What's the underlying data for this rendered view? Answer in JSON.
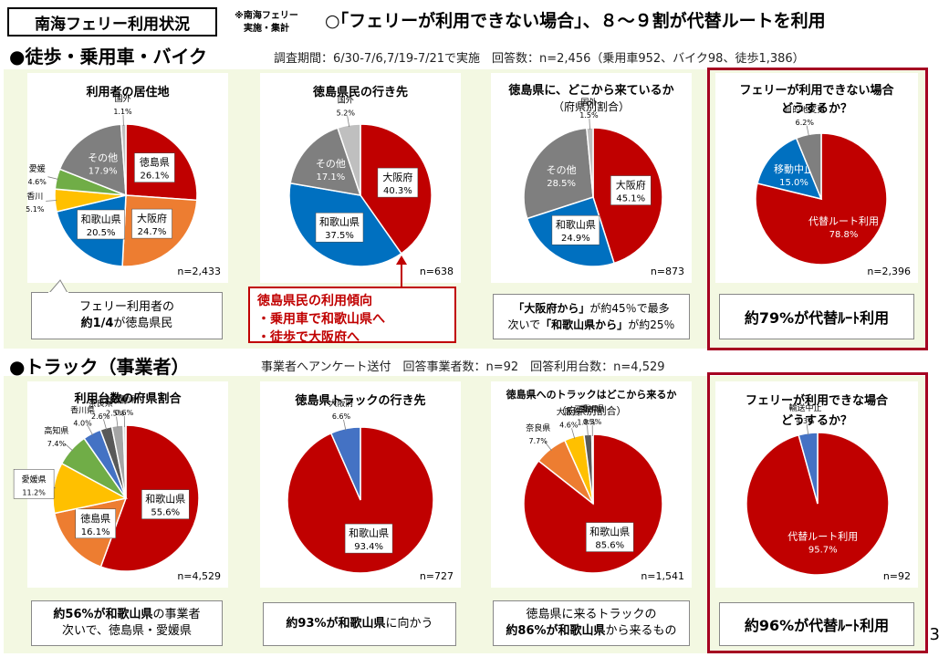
{
  "header": {
    "title": "南海フェリー利用状況",
    "note_line1": "※南海フェリー",
    "note_line2": "実施・集計",
    "headline": "○｢フェリーが利用できない場合｣、８～９割が代替ルートを利用"
  },
  "section1": {
    "title": "●徒歩・乗用車・バイク",
    "info": "調査期間：6/30-7/6,7/19-7/21で実施　回答数：n=2,456（乗用車952、バイク98、徒歩1,386）"
  },
  "section2": {
    "title": "●トラック（事業者）",
    "info": "事業者へアンケート送付　回答事業者数：n=92　回答利用台数：n=4,529"
  },
  "callouts": {
    "c1_line1": "フェリー利用者の",
    "c1_bold": "約1/4",
    "c1_line2": "が徳島県民",
    "c2_line1": "徳島県民の利用傾向",
    "c2_line2": "・乗用車で和歌山県へ",
    "c2_line3": "・徒歩で大阪府へ",
    "c3_bold1": "「大阪府から」",
    "c3_text1": "が約45％で最多",
    "c3_text2": "次いで",
    "c3_bold2": "「和歌山県から」",
    "c3_text3": "が約25％",
    "c4": "約79%が代替ﾙｰﾄ利用",
    "c5_bold": "約56%が和歌山県",
    "c5_text1": "の事業者",
    "c5_text2": "次いで、徳島県・愛媛県",
    "c6_bold": "約93%が和歌山県",
    "c6_text": "に向かう",
    "c7_text1": "徳島県に来るトラックの",
    "c7_bold": "約86%が和歌山県",
    "c7_text2": "から来るもの",
    "c8": "約96%が代替ﾙｰﾄ利用"
  },
  "page_number": "3",
  "chart_data": [
    {
      "type": "pie",
      "title": "利用者の居住地",
      "n": "n=2,433",
      "slices": [
        {
          "label": "徳島県",
          "value": 26.1,
          "pct": "26.1%",
          "color": "#c00000",
          "boxed": true
        },
        {
          "label": "大阪府",
          "value": 24.7,
          "pct": "24.7%",
          "color": "#ed7d31",
          "boxed": true
        },
        {
          "label": "和歌山県",
          "value": 20.5,
          "pct": "20.5%",
          "color": "#0070c0",
          "boxed": true
        },
        {
          "label": "香川",
          "value": 5.1,
          "pct": "5.1%",
          "color": "#ffc000",
          "boxed": false
        },
        {
          "label": "愛媛",
          "value": 4.6,
          "pct": "4.6%",
          "color": "#70ad47",
          "boxed": false
        },
        {
          "label": "その他",
          "value": 17.9,
          "pct": "17.9%",
          "color": "#7f7f7f",
          "boxed": false
        },
        {
          "label": "国外",
          "value": 1.1,
          "pct": "1.1%",
          "color": "#bfbfbf",
          "boxed": false
        }
      ]
    },
    {
      "type": "pie",
      "title": "徳島県民の行き先",
      "n": "n=638",
      "slices": [
        {
          "label": "大阪府",
          "value": 40.3,
          "pct": "40.3%",
          "color": "#c00000",
          "boxed": true
        },
        {
          "label": "和歌山県",
          "value": 37.5,
          "pct": "37.5%",
          "color": "#0070c0",
          "boxed": true
        },
        {
          "label": "その他",
          "value": 17.1,
          "pct": "17.1%",
          "color": "#7f7f7f",
          "boxed": false
        },
        {
          "label": "国外",
          "value": 5.2,
          "pct": "5.2%",
          "color": "#bfbfbf",
          "boxed": false
        }
      ]
    },
    {
      "type": "pie",
      "title": "徳島県に、どこから来ているか",
      "subtitle": "（府県別割合）",
      "n": "n=873",
      "slices": [
        {
          "label": "大阪府",
          "value": 45.1,
          "pct": "45.1%",
          "color": "#c00000",
          "boxed": true
        },
        {
          "label": "和歌山県",
          "value": 24.9,
          "pct": "24.9%",
          "color": "#0070c0",
          "boxed": true
        },
        {
          "label": "その他",
          "value": 28.5,
          "pct": "28.5%",
          "color": "#7f7f7f",
          "boxed": false
        },
        {
          "label": "国外",
          "value": 1.5,
          "pct": "1.5%",
          "color": "#bfbfbf",
          "boxed": false
        }
      ]
    },
    {
      "type": "pie",
      "title": "フェリーが利用できない場合",
      "subtitle": "どうするか？",
      "n": "n=2,396",
      "slices": [
        {
          "label": "代替ルート利用",
          "value": 78.8,
          "pct": "78.8%",
          "color": "#c00000",
          "boxed": false
        },
        {
          "label": "移動中止",
          "value": 15.0,
          "pct": "15.0%",
          "color": "#0070c0",
          "boxed": false
        },
        {
          "label": "目的地変更",
          "value": 6.2,
          "pct": "6.2%",
          "color": "#7f7f7f",
          "boxed": false
        }
      ]
    },
    {
      "type": "pie",
      "title": "利用台数の府県割合",
      "n": "n=4,529",
      "slices": [
        {
          "label": "和歌山県",
          "value": 55.6,
          "pct": "55.6%",
          "color": "#c00000",
          "boxed": true
        },
        {
          "label": "徳島県",
          "value": 16.1,
          "pct": "16.1%",
          "color": "#ed7d31",
          "boxed": true
        },
        {
          "label": "愛媛県",
          "value": 11.2,
          "pct": "11.2%",
          "color": "#ffc000",
          "boxed": true
        },
        {
          "label": "高知県",
          "value": 7.4,
          "pct": "7.4%",
          "color": "#70ad47",
          "boxed": false
        },
        {
          "label": "香川県",
          "value": 4.0,
          "pct": "4.0%",
          "color": "#4472c4",
          "boxed": false
        },
        {
          "label": "奈良県",
          "value": 2.6,
          "pct": "2.6%",
          "color": "#595959",
          "boxed": false
        },
        {
          "label": "大阪府",
          "value": 2.5,
          "pct": "2.5%",
          "color": "#a5a5a5",
          "boxed": false
        },
        {
          "label": "三重県",
          "value": 0.6,
          "pct": "0.6%",
          "color": "#d9d9d9",
          "boxed": false
        }
      ]
    },
    {
      "type": "pie",
      "title": "徳島県トラックの行き先",
      "n": "n=727",
      "slices": [
        {
          "label": "和歌山県",
          "value": 93.4,
          "pct": "93.4%",
          "color": "#c00000",
          "boxed": true
        },
        {
          "label": "大阪府",
          "value": 6.6,
          "pct": "6.6%",
          "color": "#4472c4",
          "boxed": false
        }
      ]
    },
    {
      "type": "pie",
      "title": "徳島県へのトラックはどこから来るか",
      "subtitle": "（府県別割合）",
      "n": "n=1,541",
      "slices": [
        {
          "label": "和歌山県",
          "value": 85.6,
          "pct": "85.6%",
          "color": "#c00000",
          "boxed": true
        },
        {
          "label": "奈良県",
          "value": 7.7,
          "pct": "7.7%",
          "color": "#ed7d31",
          "boxed": false
        },
        {
          "label": "大阪府",
          "value": 4.6,
          "pct": "4.6%",
          "color": "#ffc000",
          "boxed": false
        },
        {
          "label": "三重県",
          "value": 1.8,
          "pct": "1.8%",
          "color": "#595959",
          "boxed": false
        },
        {
          "label": "香川県",
          "value": 0.3,
          "pct": "0.3%",
          "color": "#4472c4",
          "boxed": false
        }
      ]
    },
    {
      "type": "pie",
      "title": "フェリーが利用できな場合",
      "subtitle": "どうするか？",
      "n": "n=92",
      "slices": [
        {
          "label": "代替ルート利用",
          "value": 95.7,
          "pct": "95.7%",
          "color": "#c00000",
          "boxed": false
        },
        {
          "label": "輸送中止",
          "value": 4.3,
          "pct": "4.3%",
          "color": "#4472c4",
          "boxed": false
        }
      ]
    }
  ]
}
